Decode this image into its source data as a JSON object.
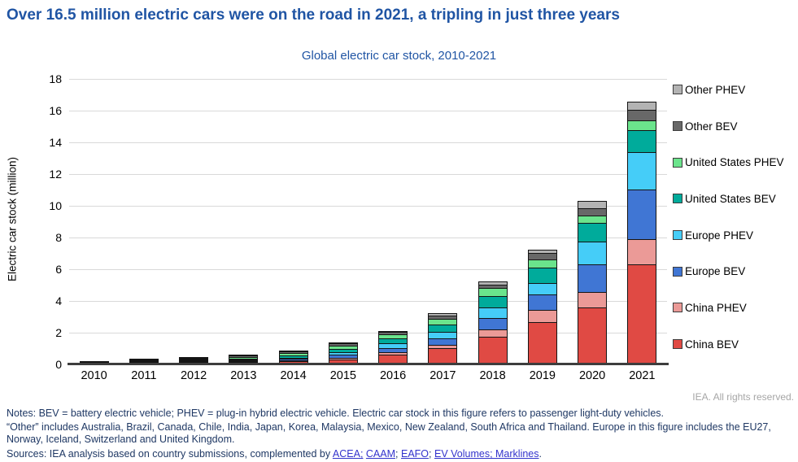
{
  "title": "Over 16.5 million electric cars were on the road in 2021, a tripling in just three years",
  "subtitle": "Global electric car stock, 2010-2021",
  "copyright": "IEA. All rights reserved.",
  "notes": {
    "line1": "Notes: BEV = battery electric vehicle; PHEV = plug-in hybrid electric vehicle. Electric car stock in this figure refers to passenger light-duty vehicles.",
    "line2": "“Other” includes Australia, Brazil, Canada, Chile, India, Japan, Korea, Malaysia, Mexico, New Zealand, South Africa and Thailand. Europe in this figure includes the EU27, Norway, Iceland, Switzerland and United Kingdom.",
    "sources_parts": [
      {
        "text": "Sources: IEA analysis based on country submissions, complemented by ",
        "link": false
      },
      {
        "text": "ACEA;",
        "link": true
      },
      {
        "text": " ",
        "link": false
      },
      {
        "text": "CAAM",
        "link": true
      },
      {
        "text": "; ",
        "link": false
      },
      {
        "text": "EAFO",
        "link": true
      },
      {
        "text": "; ",
        "link": false
      },
      {
        "text": "EV Volumes; Marklines",
        "link": true
      },
      {
        "text": ".",
        "link": false
      }
    ]
  },
  "colors": {
    "title_blue": "#2055a4",
    "notes_navy": "#1f3864",
    "link_blue": "#3333cc",
    "copyright_gray": "#a6a6a6",
    "gridline": "#d9d9d9",
    "axis": "#3d3d3d",
    "segment_border": "#141414"
  },
  "chart_data": {
    "type": "bar",
    "stacked": true,
    "title": "Global electric car stock, 2010-2021",
    "xlabel": "",
    "ylabel": "Electric car stock (million)",
    "ylim": [
      0,
      18
    ],
    "ytick_step": 2,
    "grid": true,
    "legend_position": "right",
    "legend_order": "reversed-of-stack",
    "categories": [
      "2010",
      "2011",
      "2012",
      "2013",
      "2014",
      "2015",
      "2016",
      "2017",
      "2018",
      "2019",
      "2020",
      "2021"
    ],
    "series": [
      {
        "name": "China BEV",
        "color": "#e04a44",
        "values": [
          0.01,
          0.01,
          0.02,
          0.03,
          0.08,
          0.23,
          0.49,
          0.9,
          1.66,
          2.55,
          3.5,
          6.2
        ]
      },
      {
        "name": "China PHEV",
        "color": "#eb9a97",
        "values": [
          0.0,
          0.0,
          0.0,
          0.01,
          0.03,
          0.08,
          0.16,
          0.23,
          0.43,
          0.8,
          0.95,
          1.6
        ]
      },
      {
        "name": "Europe BEV",
        "color": "#4076d4",
        "values": [
          0.0,
          0.02,
          0.03,
          0.06,
          0.11,
          0.19,
          0.29,
          0.42,
          0.71,
          0.95,
          1.75,
          3.1
        ]
      },
      {
        "name": "Europe PHEV",
        "color": "#45cdf8",
        "values": [
          0.0,
          0.0,
          0.01,
          0.03,
          0.09,
          0.16,
          0.29,
          0.4,
          0.69,
          0.75,
          1.45,
          2.4
        ]
      },
      {
        "name": "United States BEV",
        "color": "#00ab9b",
        "values": [
          0.0,
          0.01,
          0.03,
          0.08,
          0.14,
          0.21,
          0.3,
          0.48,
          0.71,
          0.95,
          1.15,
          1.35
        ]
      },
      {
        "name": "United States PHEV",
        "color": "#6be48c",
        "values": [
          0.0,
          0.01,
          0.04,
          0.09,
          0.15,
          0.19,
          0.27,
          0.34,
          0.5,
          0.5,
          0.5,
          0.65
        ]
      },
      {
        "name": "Other BEV",
        "color": "#686868",
        "values": [
          0.01,
          0.01,
          0.04,
          0.08,
          0.09,
          0.15,
          0.15,
          0.2,
          0.25,
          0.4,
          0.45,
          0.65
        ]
      },
      {
        "name": "Other PHEV",
        "color": "#b3b3b3",
        "values": [
          0.0,
          0.0,
          0.01,
          0.01,
          0.01,
          0.04,
          0.05,
          0.15,
          0.2,
          0.25,
          0.45,
          0.5
        ]
      }
    ],
    "totals": [
      0.02,
      0.06,
      0.18,
      0.39,
      0.7,
      1.25,
      2.0,
      3.12,
      5.15,
      7.15,
      10.2,
      16.45
    ]
  }
}
